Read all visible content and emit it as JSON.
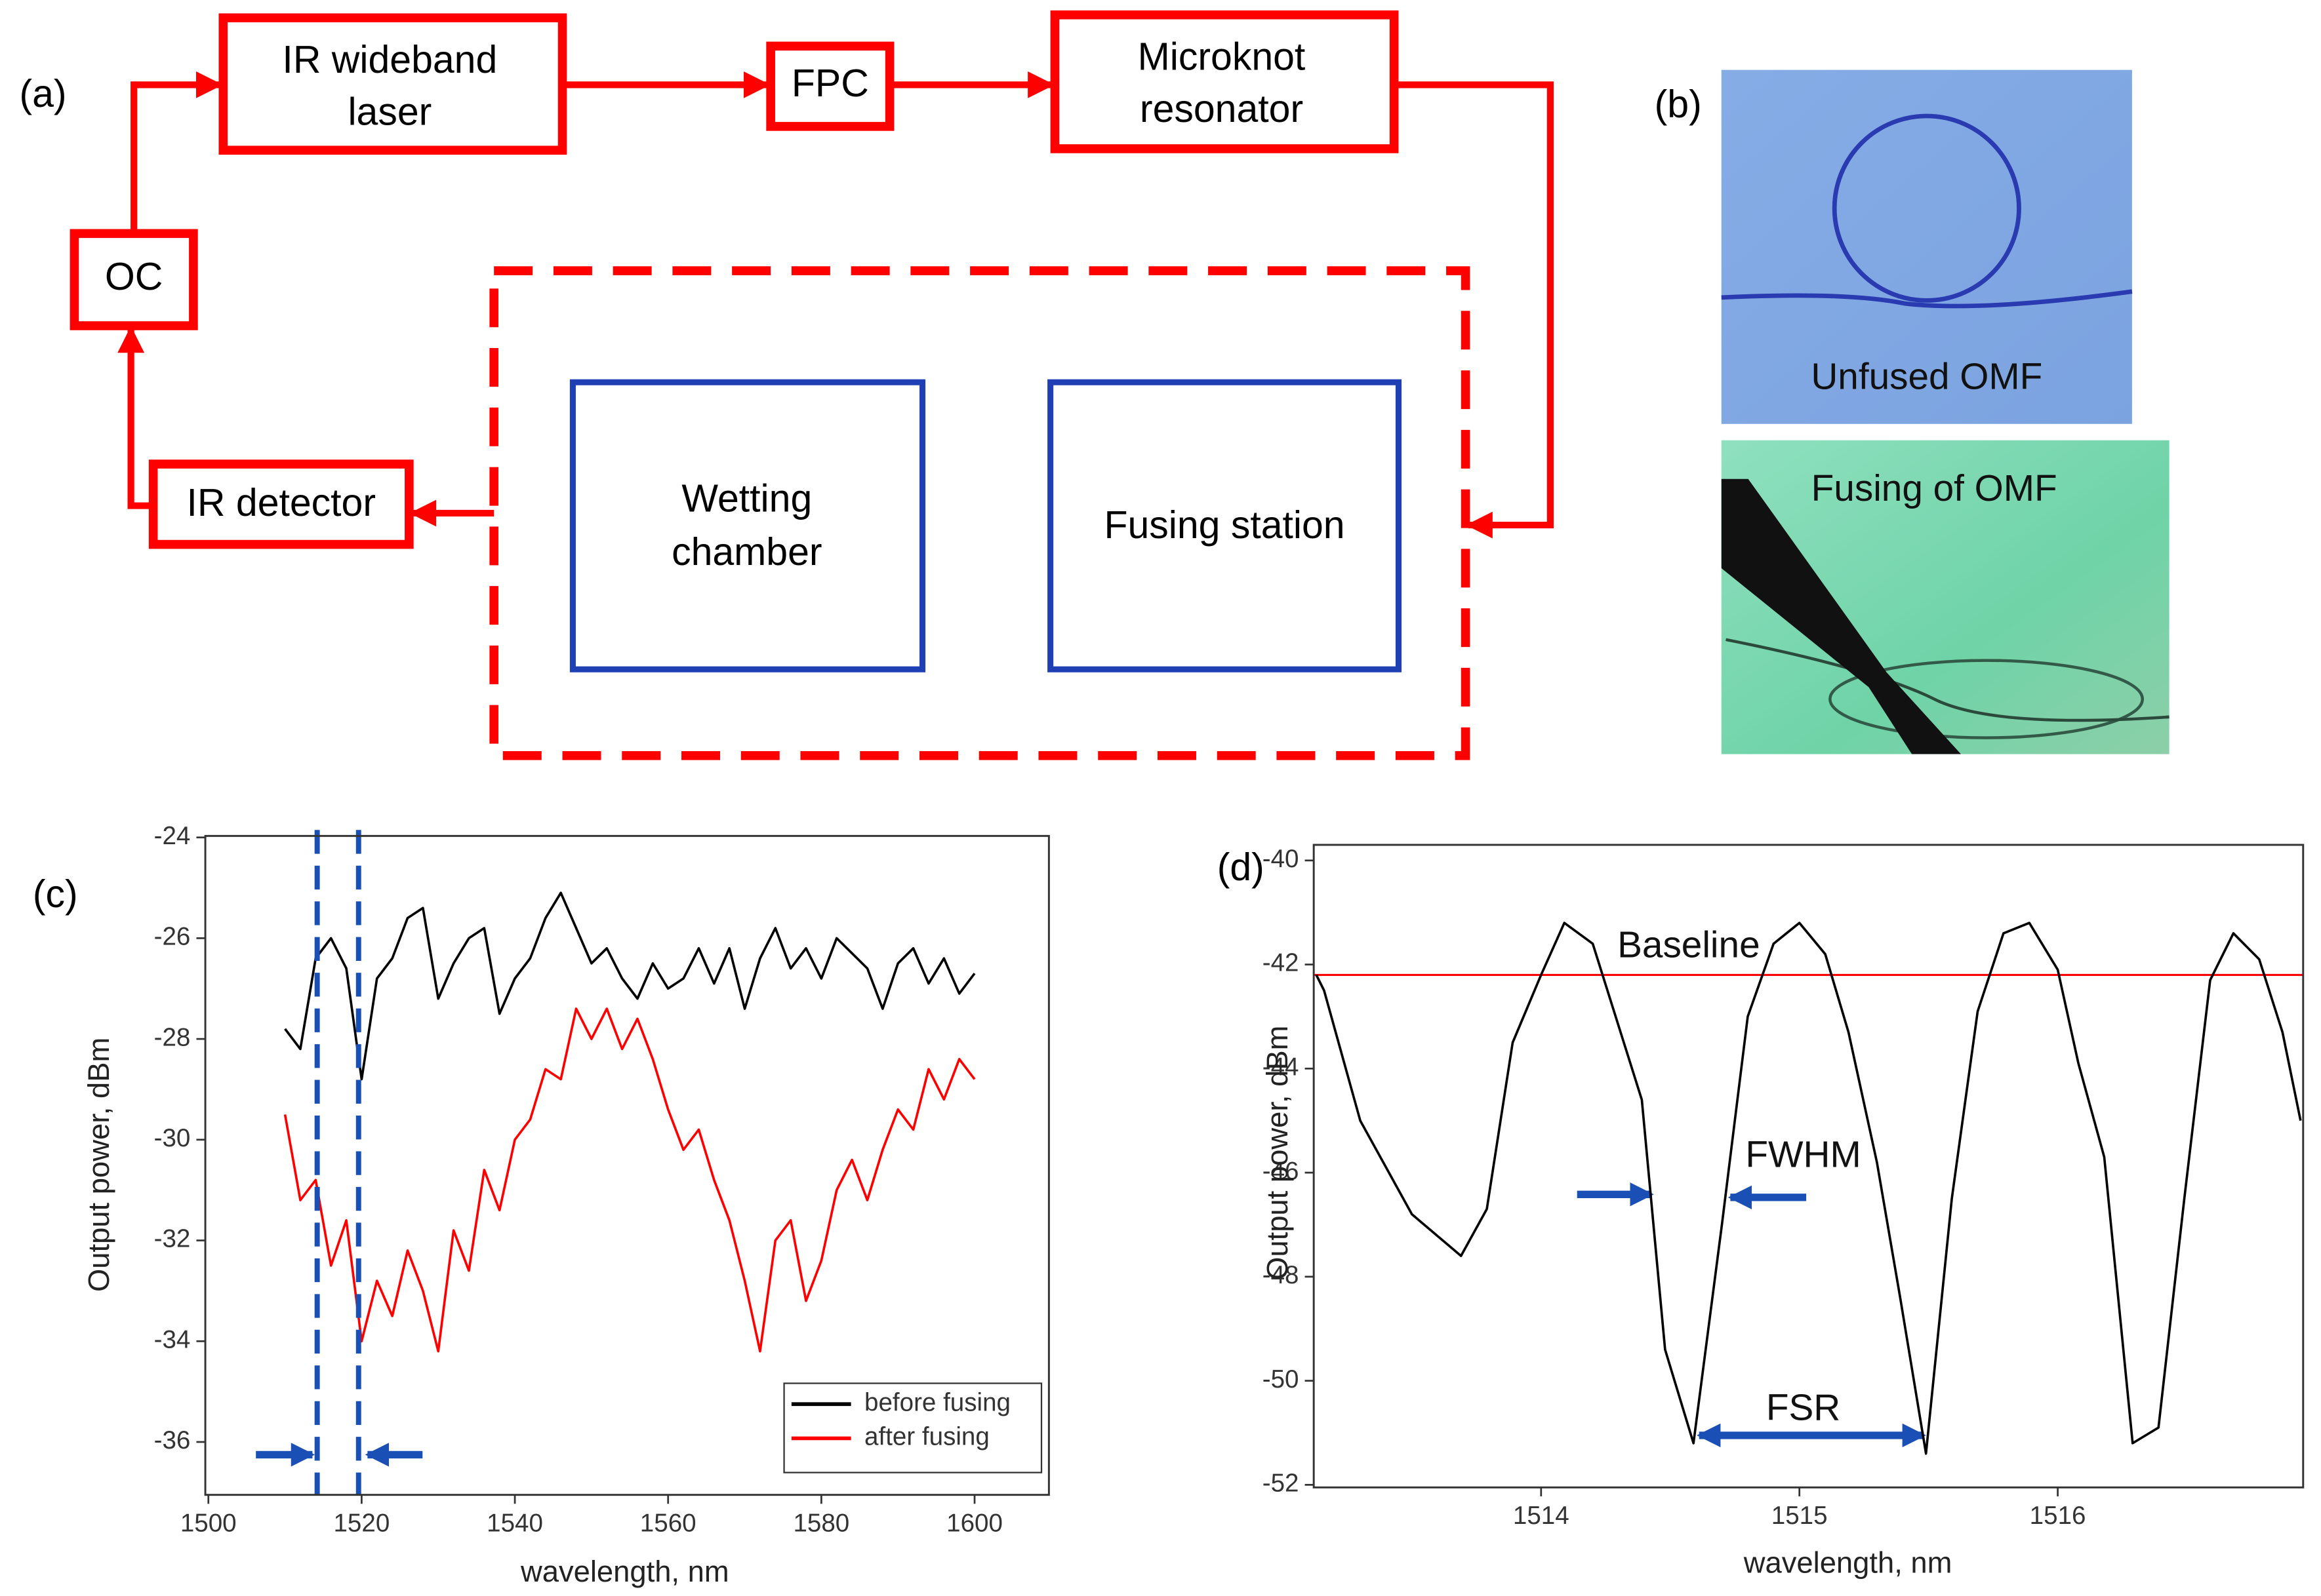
{
  "panels": [
    "(a)",
    "(b)",
    "(c)",
    "(d)"
  ],
  "diagram": {
    "nodes": [
      {
        "lines": [
          "IR wideband",
          "laser"
        ]
      },
      {
        "lines": [
          "FPC"
        ]
      },
      {
        "lines": [
          "Microknot",
          "resonator"
        ]
      },
      {
        "lines": [
          "OC"
        ]
      },
      {
        "lines": [
          "IR detector"
        ]
      },
      {
        "lines": [
          "Wetting",
          "chamber"
        ]
      },
      {
        "lines": [
          "Fusing station"
        ]
      }
    ]
  },
  "photos": [
    {
      "caption": "Unfused OMF"
    },
    {
      "caption": "Fusing of OMF"
    }
  ],
  "chart_data": [
    {
      "type": "line",
      "xlabel": "wavelength, nm",
      "ylabel": "Output power, dBm",
      "xlim": [
        1499.6,
        1609.7
      ],
      "ylim": [
        -37.05,
        -23.97
      ],
      "xticks": [
        1500,
        1520,
        1540,
        1560,
        1580,
        1600
      ],
      "yticks": [
        -24,
        -26,
        -28,
        -30,
        -32,
        -34,
        -36
      ],
      "legend": "lower right",
      "vlines": [
        1514.2,
        1519.6
      ],
      "x": [
        1510,
        1512,
        1514,
        1516,
        1518,
        1520,
        1522,
        1524,
        1526,
        1528,
        1530,
        1532,
        1534,
        1536,
        1538,
        1540,
        1542,
        1544,
        1546,
        1548,
        1550,
        1552,
        1554,
        1556,
        1558,
        1560,
        1562,
        1564,
        1566,
        1568,
        1570,
        1572,
        1574,
        1576,
        1578,
        1580,
        1582,
        1584,
        1586,
        1588,
        1590,
        1592,
        1594,
        1596,
        1598,
        1600
      ],
      "series": [
        {
          "name": "before fusing",
          "color": "#000000",
          "values": [
            -27.8,
            -28.2,
            -26.4,
            -26.0,
            -26.6,
            -28.8,
            -26.8,
            -26.4,
            -25.6,
            -25.4,
            -27.2,
            -26.5,
            -26.0,
            -25.8,
            -27.5,
            -26.8,
            -26.4,
            -25.6,
            -25.1,
            -25.8,
            -26.5,
            -26.2,
            -26.8,
            -27.2,
            -26.5,
            -27.0,
            -26.8,
            -26.2,
            -26.9,
            -26.2,
            -27.4,
            -26.4,
            -25.8,
            -26.6,
            -26.2,
            -26.8,
            -26.0,
            -26.3,
            -26.6,
            -27.4,
            -26.5,
            -26.2,
            -26.9,
            -26.4,
            -27.1,
            -26.7
          ]
        },
        {
          "name": "after fusing",
          "color": "#ff0000",
          "values": [
            -29.5,
            -31.2,
            -30.8,
            -32.5,
            -31.6,
            -34.0,
            -32.8,
            -33.5,
            -32.2,
            -33.0,
            -34.2,
            -31.8,
            -32.6,
            -30.6,
            -31.4,
            -30.0,
            -29.6,
            -28.6,
            -28.8,
            -27.4,
            -28.0,
            -27.4,
            -28.2,
            -27.6,
            -28.4,
            -29.4,
            -30.2,
            -29.8,
            -30.8,
            -31.6,
            -32.8,
            -34.2,
            -32.0,
            -31.6,
            -33.2,
            -32.4,
            -31.0,
            -30.4,
            -31.2,
            -30.2,
            -29.4,
            -29.8,
            -28.6,
            -29.2,
            -28.4,
            -28.8
          ]
        }
      ]
    },
    {
      "type": "line",
      "xlabel": "wavelength, nm",
      "ylabel": "Output power, dBm",
      "xlim": [
        1513.12,
        1516.95
      ],
      "ylim": [
        -52.05,
        -39.7
      ],
      "xticks": [
        1514,
        1515,
        1516
      ],
      "yticks": [
        -40,
        -42,
        -44,
        -46,
        -48,
        -50,
        -52
      ],
      "hlines": [
        {
          "value": -42.2,
          "color": "#ff0000"
        }
      ],
      "annotations": [
        "Baseline",
        "FWHM",
        "FSR"
      ],
      "x": [
        1513.13,
        1513.16,
        1513.3,
        1513.5,
        1513.69,
        1513.79,
        1513.89,
        1514.0,
        1514.09,
        1514.2,
        1514.39,
        1514.48,
        1514.59,
        1514.7,
        1514.8,
        1514.9,
        1515.0,
        1515.1,
        1515.19,
        1515.3,
        1515.39,
        1515.49,
        1515.59,
        1515.69,
        1515.79,
        1515.89,
        1516.0,
        1516.08,
        1516.18,
        1516.29,
        1516.39,
        1516.49,
        1516.59,
        1516.68,
        1516.78,
        1516.87,
        1516.94
      ],
      "series": [
        {
          "color": "#000000",
          "values": [
            -42.2,
            -42.5,
            -45.0,
            -46.8,
            -47.6,
            -46.7,
            -43.5,
            -42.2,
            -41.2,
            -41.6,
            -44.6,
            -49.4,
            -51.2,
            -47.0,
            -43.0,
            -41.6,
            -41.2,
            -41.8,
            -43.3,
            -45.8,
            -48.4,
            -51.4,
            -46.5,
            -42.9,
            -41.4,
            -41.2,
            -42.1,
            -43.9,
            -45.7,
            -51.2,
            -50.9,
            -46.5,
            -42.3,
            -41.4,
            -41.9,
            -43.3,
            -45.0
          ]
        }
      ]
    }
  ]
}
